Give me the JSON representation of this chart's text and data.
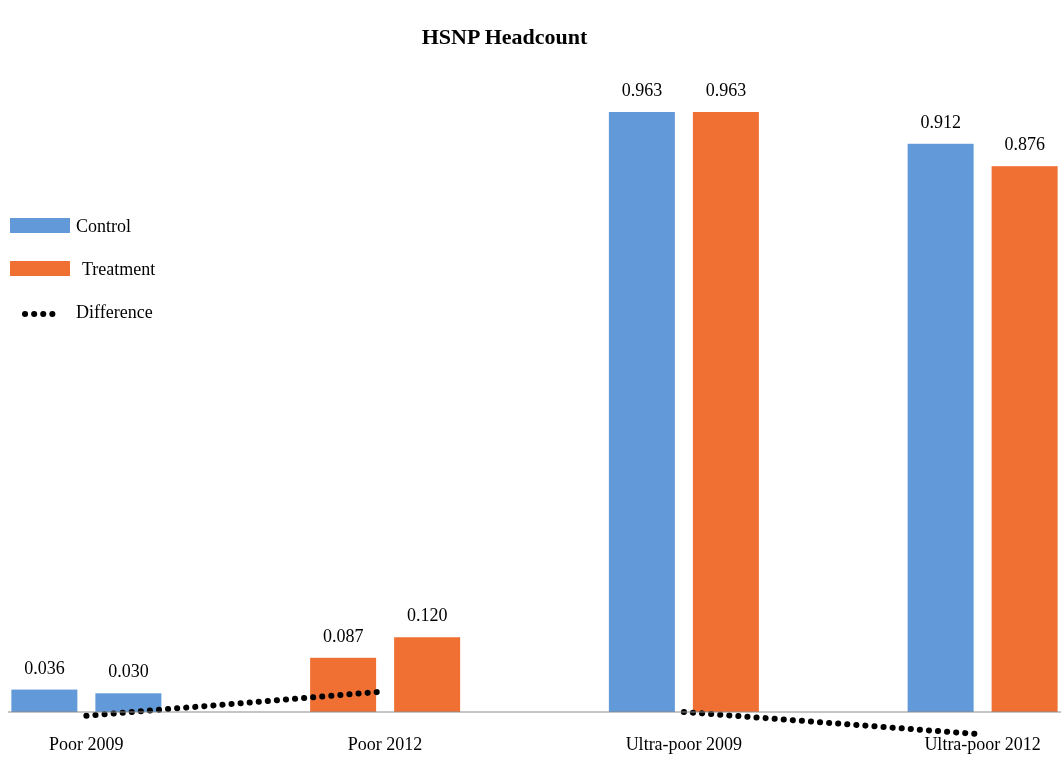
{
  "chart_data": {
    "type": "bar",
    "title": "HSNP Headcount",
    "categories": [
      "Poor 2009",
      "Poor 2012",
      "Ultra-poor 2009",
      "Ultra-poor 2012"
    ],
    "series": [
      {
        "name": "Control",
        "color": "#6299d8",
        "colors": [
          "#6299d8",
          "#f07033",
          "#6299d8",
          "#6299d8"
        ],
        "values": [
          0.036,
          0.087,
          0.963,
          0.912
        ],
        "value_labels": [
          "0.036",
          "0.087",
          "0.963",
          "0.912"
        ]
      },
      {
        "name": "Treatment",
        "color": "#f07033",
        "colors": [
          "#6299d8",
          "#f07033",
          "#f07033",
          "#f07033"
        ],
        "values": [
          0.03,
          0.12,
          0.963,
          0.876
        ],
        "value_labels": [
          "0.030",
          "0.120",
          "0.963",
          "0.876"
        ]
      },
      {
        "name": "Difference",
        "type": "line",
        "color": "#000000",
        "line_style": "dotted",
        "values": [
          -0.006,
          0.033,
          null,
          null
        ]
      },
      {
        "type": "line",
        "color": "#000000",
        "line_style": "dotted",
        "values": [
          null,
          null,
          0,
          -0.036
        ]
      }
    ],
    "legend": "top left",
    "tick_labels": "x"
  }
}
